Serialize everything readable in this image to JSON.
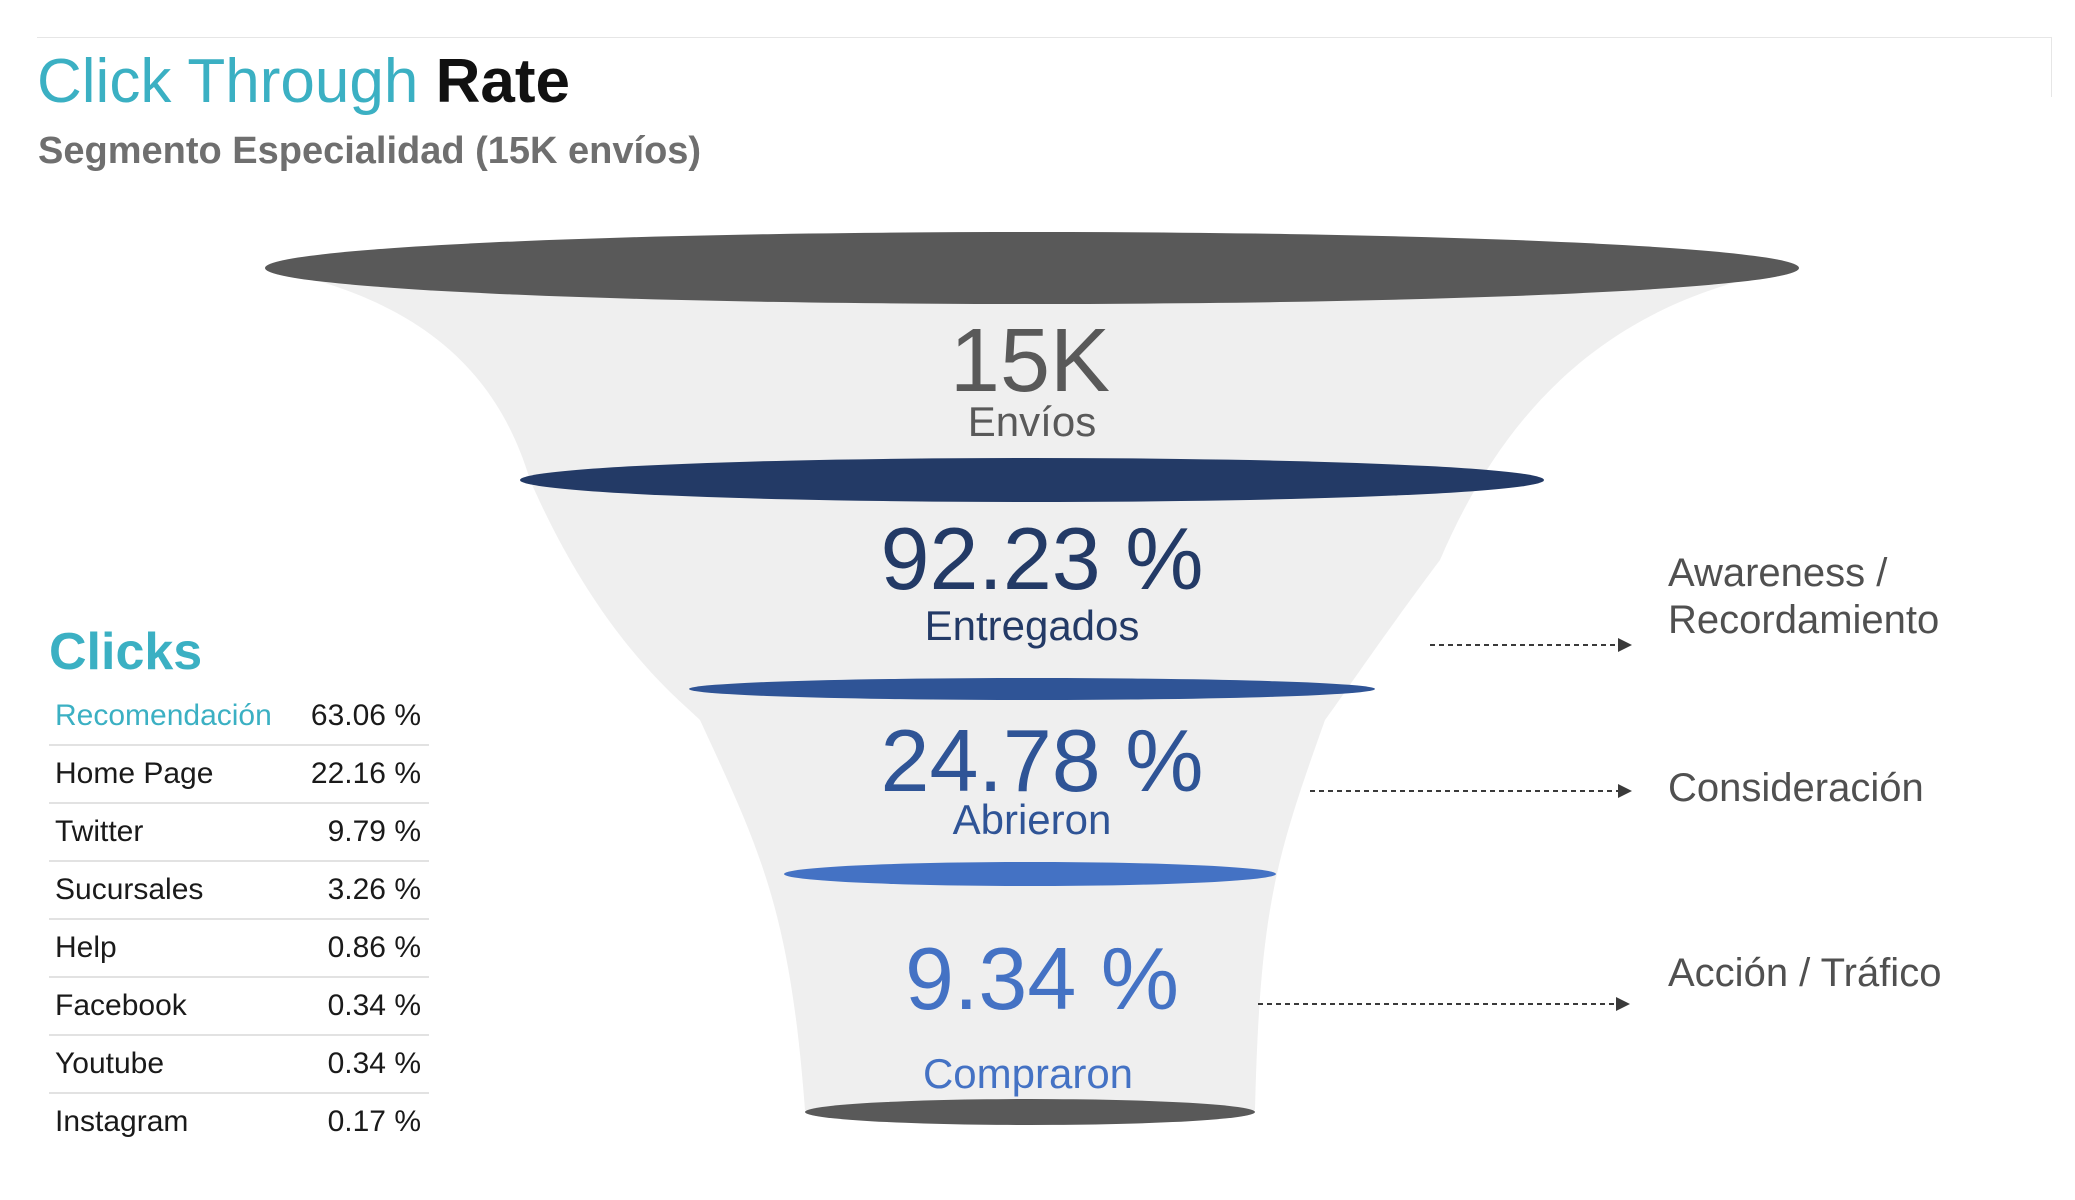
{
  "header": {
    "title_part1": "Click Through",
    "title_part2": "Rate",
    "subtitle": "Segmento Especialidad (15K envíos)"
  },
  "funnel": [
    {
      "value": "15K",
      "label": "Envíos",
      "color": "#595959",
      "rim_color": "#595959"
    },
    {
      "value": "92.23 %",
      "label": "Entregados",
      "color": "#233a66",
      "rim_color": "#233a66",
      "description": "Awareness /\nRecordamiento"
    },
    {
      "value": "24.78 %",
      "label": "Abrieron",
      "color": "#2f5496",
      "rim_color": "#2f5496",
      "description": "Consideración"
    },
    {
      "value": "9.34 %",
      "label": "Compraron",
      "color": "#4472c4",
      "rim_color": "#4472c4",
      "description": "Acción / Tráfico"
    }
  ],
  "clicks": {
    "title": "Clicks",
    "rows": [
      {
        "name": "Recomendación",
        "value": "63.06 %"
      },
      {
        "name": "Home Page",
        "value": "22.16 %"
      },
      {
        "name": "Twitter",
        "value": "9.79 %"
      },
      {
        "name": "Sucursales",
        "value": "3.26 %"
      },
      {
        "name": "Help",
        "value": "0.86 %"
      },
      {
        "name": "Facebook",
        "value": "0.34 %"
      },
      {
        "name": "Youtube",
        "value": "0.34 %"
      },
      {
        "name": "Instagram",
        "value": "0.17 %"
      }
    ]
  },
  "colors": {
    "accent": "#3bb0c3",
    "funnel_body": "#efefef",
    "bottom_rim": "#595959"
  }
}
